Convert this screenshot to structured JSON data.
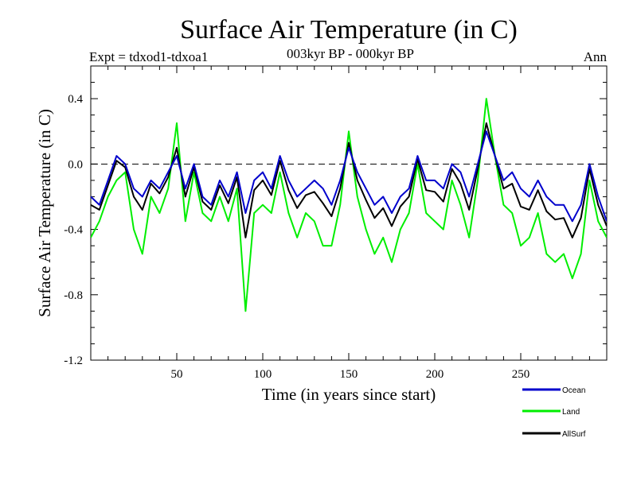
{
  "chart_data": {
    "type": "line",
    "title": "Surface Air Temperature (in C)",
    "subtitle": "003kyr BP - 000kyr BP",
    "left_label": "Expt = tdxod1-tdxoa1",
    "right_label": "Ann",
    "xlabel": "Time (in years since start)",
    "ylabel": "Surface Air Temperature (in C)",
    "xlim": [
      0,
      300
    ],
    "ylim": [
      -1.2,
      0.6
    ],
    "xticks": [
      50,
      100,
      150,
      200,
      250
    ],
    "xtick_labels": [
      "50",
      "100",
      "150",
      "200",
      "250"
    ],
    "yticks": [
      0.4,
      0.0,
      -0.4,
      -0.8,
      -1.2
    ],
    "ytick_labels": [
      "0.4",
      "0.0",
      "-0.4",
      "-0.8",
      "-1.2"
    ],
    "reference_line": {
      "y": 0.0,
      "style": "dashed"
    },
    "legend_position": "bottom-right, below plot",
    "series": [
      {
        "name": "Ocean",
        "color": "#0000cc",
        "x": [
          0,
          5,
          10,
          15,
          20,
          25,
          30,
          35,
          40,
          45,
          50,
          55,
          60,
          65,
          70,
          75,
          80,
          85,
          90,
          95,
          100,
          105,
          110,
          115,
          120,
          125,
          130,
          135,
          140,
          145,
          150,
          155,
          160,
          165,
          170,
          175,
          180,
          185,
          190,
          195,
          200,
          205,
          210,
          215,
          220,
          225,
          230,
          235,
          240,
          245,
          250,
          255,
          260,
          265,
          270,
          275,
          280,
          285,
          290,
          295,
          300
        ],
        "values": [
          -0.2,
          -0.25,
          -0.1,
          0.05,
          0.0,
          -0.15,
          -0.2,
          -0.1,
          -0.15,
          -0.05,
          0.05,
          -0.15,
          0.0,
          -0.2,
          -0.25,
          -0.1,
          -0.2,
          -0.05,
          -0.3,
          -0.1,
          -0.05,
          -0.15,
          0.05,
          -0.1,
          -0.2,
          -0.15,
          -0.1,
          -0.15,
          -0.25,
          -0.1,
          0.1,
          -0.05,
          -0.15,
          -0.25,
          -0.2,
          -0.3,
          -0.2,
          -0.15,
          0.05,
          -0.1,
          -0.1,
          -0.15,
          0.0,
          -0.05,
          -0.2,
          0.0,
          0.2,
          0.05,
          -0.1,
          -0.05,
          -0.15,
          -0.2,
          -0.1,
          -0.2,
          -0.25,
          -0.25,
          -0.35,
          -0.25,
          0.0,
          -0.2,
          -0.35
        ]
      },
      {
        "name": "Land",
        "color": "#00ee00",
        "x": [
          0,
          5,
          10,
          15,
          20,
          25,
          30,
          35,
          40,
          45,
          50,
          55,
          60,
          65,
          70,
          75,
          80,
          85,
          90,
          95,
          100,
          105,
          110,
          115,
          120,
          125,
          130,
          135,
          140,
          145,
          150,
          155,
          160,
          165,
          170,
          175,
          180,
          185,
          190,
          195,
          200,
          205,
          210,
          215,
          220,
          225,
          230,
          235,
          240,
          245,
          250,
          255,
          260,
          265,
          270,
          275,
          280,
          285,
          290,
          295,
          300
        ],
        "values": [
          -0.45,
          -0.35,
          -0.2,
          -0.1,
          -0.05,
          -0.4,
          -0.55,
          -0.2,
          -0.3,
          -0.15,
          0.25,
          -0.35,
          -0.05,
          -0.3,
          -0.35,
          -0.2,
          -0.35,
          -0.15,
          -0.9,
          -0.3,
          -0.25,
          -0.3,
          -0.05,
          -0.3,
          -0.45,
          -0.3,
          -0.35,
          -0.5,
          -0.5,
          -0.25,
          0.2,
          -0.2,
          -0.4,
          -0.55,
          -0.45,
          -0.6,
          -0.4,
          -0.3,
          0.0,
          -0.3,
          -0.35,
          -0.4,
          -0.1,
          -0.25,
          -0.45,
          -0.1,
          0.4,
          0.05,
          -0.25,
          -0.3,
          -0.5,
          -0.45,
          -0.3,
          -0.55,
          -0.6,
          -0.55,
          -0.7,
          -0.55,
          -0.1,
          -0.35,
          -0.45
        ]
      },
      {
        "name": "AllSurf",
        "color": "#000000",
        "x": [
          0,
          5,
          10,
          15,
          20,
          25,
          30,
          35,
          40,
          45,
          50,
          55,
          60,
          65,
          70,
          75,
          80,
          85,
          90,
          95,
          100,
          105,
          110,
          115,
          120,
          125,
          130,
          135,
          140,
          145,
          150,
          155,
          160,
          165,
          170,
          175,
          180,
          185,
          190,
          195,
          200,
          205,
          210,
          215,
          220,
          225,
          230,
          235,
          240,
          245,
          250,
          255,
          260,
          265,
          270,
          275,
          280,
          285,
          290,
          295,
          300
        ],
        "values": [
          -0.25,
          -0.28,
          -0.13,
          0.02,
          -0.02,
          -0.2,
          -0.28,
          -0.12,
          -0.18,
          -0.08,
          0.1,
          -0.2,
          -0.02,
          -0.23,
          -0.28,
          -0.13,
          -0.24,
          -0.08,
          -0.45,
          -0.16,
          -0.1,
          -0.19,
          0.02,
          -0.16,
          -0.27,
          -0.19,
          -0.17,
          -0.24,
          -0.32,
          -0.15,
          0.13,
          -0.1,
          -0.22,
          -0.33,
          -0.27,
          -0.38,
          -0.26,
          -0.2,
          0.03,
          -0.16,
          -0.17,
          -0.23,
          -0.03,
          -0.12,
          -0.28,
          -0.03,
          0.25,
          0.05,
          -0.15,
          -0.12,
          -0.26,
          -0.28,
          -0.16,
          -0.29,
          -0.34,
          -0.33,
          -0.45,
          -0.33,
          -0.03,
          -0.25,
          -0.38
        ]
      }
    ]
  }
}
